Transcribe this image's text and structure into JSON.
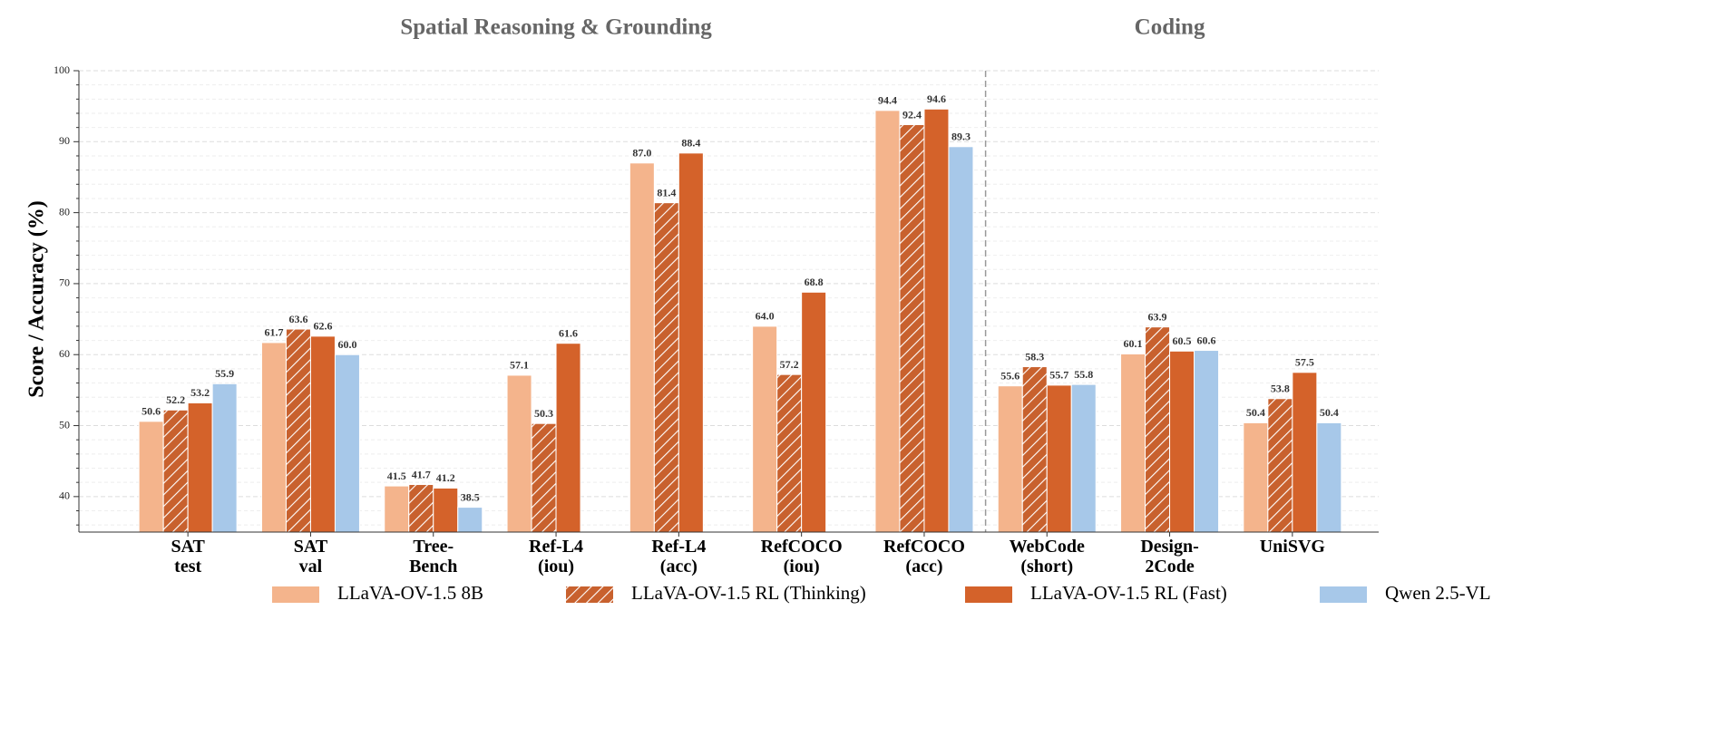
{
  "chart_data": {
    "type": "bar",
    "y_label": "Score / Accuracy (%)",
    "sections": [
      {
        "title": "Spatial Reasoning & Grounding",
        "span": 7
      },
      {
        "title": "Coding",
        "span": 3
      }
    ],
    "categories": [
      [
        "SAT",
        "test"
      ],
      [
        "SAT",
        "val"
      ],
      [
        "Tree-",
        "Bench"
      ],
      [
        "Ref-L4",
        "(iou)"
      ],
      [
        "Ref-L4",
        "(acc)"
      ],
      [
        "RefCOCO",
        "(iou)"
      ],
      [
        "RefCOCO",
        "(acc)"
      ],
      [
        "WebCode",
        "(short)"
      ],
      [
        "Design-",
        "2Code"
      ],
      [
        "UniSVG"
      ]
    ],
    "series": [
      {
        "name": "LLaVA-OV-1.5 8B",
        "color": "#f4b48c",
        "hatch": false,
        "values": [
          50.6,
          61.7,
          41.5,
          57.1,
          87.0,
          64.0,
          94.4,
          55.6,
          60.1,
          50.4
        ],
        "value_labels": [
          "50.6",
          "61.7",
          "41.5",
          "57.1",
          "87.0",
          "64.0",
          "94.4",
          "55.6",
          "60.1",
          "50.4"
        ]
      },
      {
        "name": "LLaVA-OV-1.5 RL (Thinking)",
        "color": "#c8612e",
        "hatch": true,
        "values": [
          52.2,
          63.6,
          41.7,
          50.3,
          81.4,
          57.2,
          92.4,
          58.3,
          63.9,
          53.8
        ],
        "value_labels": [
          "52.2",
          "63.6",
          "41.7",
          "50.3",
          "81.4",
          "57.2",
          "92.4",
          "58.3",
          "63.9",
          "53.8"
        ]
      },
      {
        "name": "LLaVA-OV-1.5 RL (Fast)",
        "color": "#d4622a",
        "hatch": false,
        "values": [
          53.2,
          62.6,
          41.2,
          61.6,
          88.4,
          68.8,
          94.6,
          55.7,
          60.5,
          57.5
        ],
        "value_labels": [
          "53.2",
          "62.6",
          "41.2",
          "61.6",
          "88.4",
          "68.8",
          "94.6",
          "55.7",
          "60.5",
          "57.5"
        ]
      },
      {
        "name": "Qwen 2.5-VL",
        "color": "#a7c8e9",
        "hatch": false,
        "values": [
          55.9,
          60.0,
          38.5,
          null,
          null,
          null,
          89.3,
          55.8,
          60.6,
          50.4
        ],
        "value_labels": [
          "55.9",
          "60.0",
          "38.5",
          null,
          null,
          null,
          "89.3",
          "55.8",
          "60.6",
          "50.4"
        ]
      }
    ],
    "ylim": [
      35,
      100
    ],
    "yticks": [
      40,
      50,
      60,
      70,
      80,
      90,
      100
    ],
    "yminorticks": [
      36,
      38,
      42,
      44,
      46,
      48,
      52,
      54,
      56,
      58,
      62,
      64,
      66,
      68,
      72,
      74,
      76,
      78,
      82,
      84,
      86,
      88,
      92,
      94,
      96,
      98
    ],
    "grid": true,
    "legend": "bottom"
  }
}
